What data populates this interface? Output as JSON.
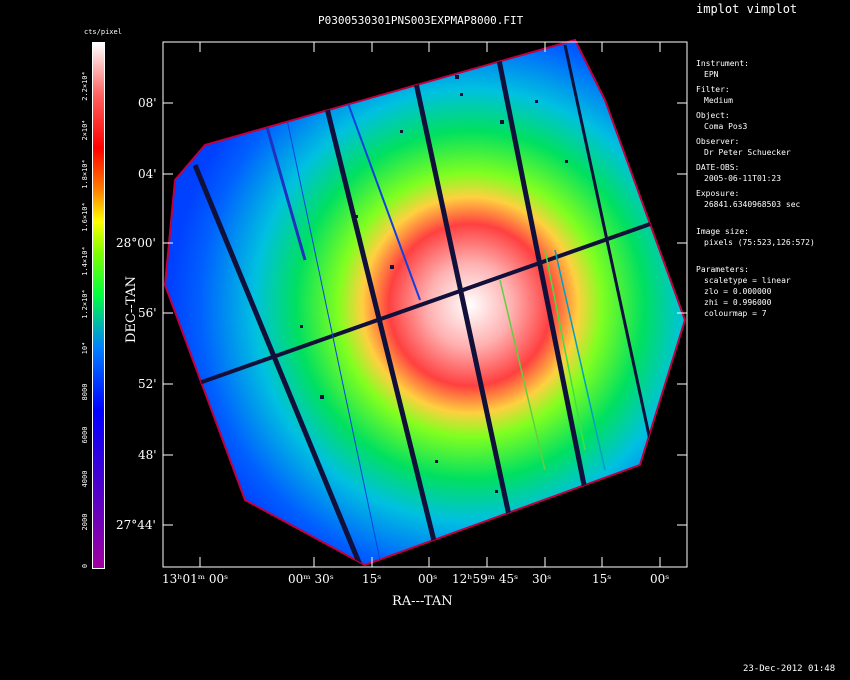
{
  "header": {
    "title": "P0300530301PNS003EXPMAP8000.FIT",
    "app_title": "implot vimplot"
  },
  "colorbar": {
    "unit_label": "cts/pixel",
    "ticks": [
      "0",
      "2000",
      "4000",
      "6000",
      "8000",
      "10⁴",
      "1.2×10⁴",
      "1.4×10⁴",
      "1.6×10⁴",
      "1.8×10⁴",
      "2×10⁴",
      "2.2×10⁴"
    ]
  },
  "axes": {
    "ylabel": "DEC--TAN",
    "xlabel": "RA---TAN",
    "y_ticks": [
      "08'",
      "04'",
      "28°00'",
      "56'",
      "52'",
      "48'",
      "27°44'"
    ],
    "x_ticks": [
      "13ʰ01ᵐ 00ˢ",
      "00ᵐ 30ˢ",
      "15ˢ",
      "00ˢ",
      "12ʰ59ᵐ 45ˢ",
      "30ˢ",
      "15ˢ",
      "00ˢ"
    ]
  },
  "info": {
    "instrument_label": "Instrument:",
    "instrument_value": "EPN",
    "filter_label": "Filter:",
    "filter_value": "Medium",
    "object_label": "Object:",
    "object_value": "Coma Pos3",
    "observer_label": "Observer:",
    "observer_value": "Dr Peter Schuecker",
    "date_label": "DATE-OBS:",
    "date_value": "2005-06-11T01:23",
    "exposure_label": "Exposure:",
    "exposure_value": "26841.6340968503 sec",
    "size_label": "Image size:",
    "size_value": "pixels (75:523,126:572)",
    "params_label": "Parameters:",
    "scaletype": "scaletype = linear",
    "zlo": "zlo = 0.000000",
    "zhi": "zhi = 0.996000",
    "colourmap": "colourmap =   7"
  },
  "footer": {
    "timestamp": "23-Dec-2012 01:48"
  },
  "colors": {
    "background": "#000000",
    "colormap": [
      "#ffffff",
      "#ff6060",
      "#ff0000",
      "#ffa000",
      "#ffff00",
      "#00ff00",
      "#00a0ff",
      "#0000ff",
      "#6000a0",
      "#a000a0"
    ]
  }
}
